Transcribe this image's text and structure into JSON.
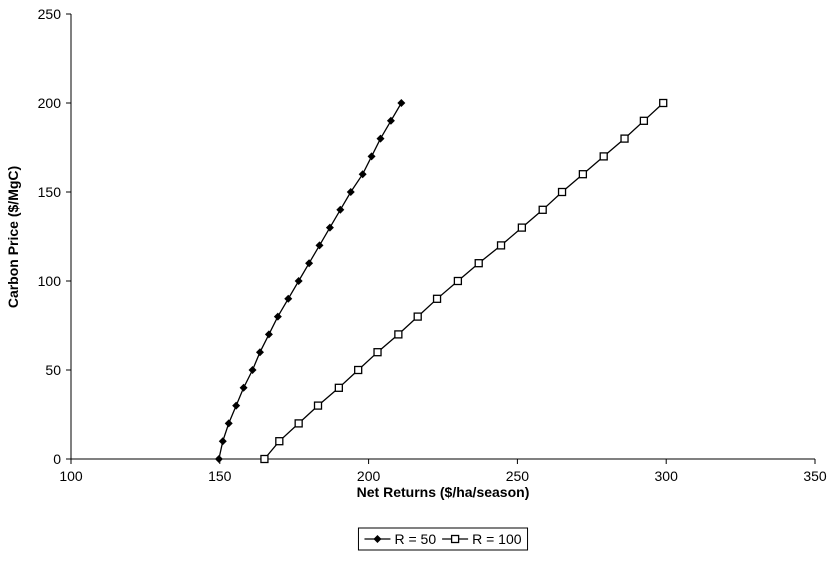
{
  "chart_data": {
    "type": "line",
    "x_label": "Net Returns ($/ha/season)",
    "y_label": "Carbon Price ($/MgC)",
    "xlim": [
      100,
      350
    ],
    "xticks": [
      100,
      150,
      200,
      250,
      300,
      350
    ],
    "ylim": [
      0,
      250
    ],
    "yticks": [
      0,
      50,
      100,
      150,
      200,
      250
    ],
    "grid": false,
    "legend": "bottom",
    "series": [
      {
        "name": "R = 50",
        "color": "#000000",
        "marker": "diamond",
        "x": [
          149.7,
          151,
          153,
          155.5,
          158,
          161,
          163.5,
          166.5,
          169.5,
          173,
          176.5,
          180,
          183.5,
          187,
          190.5,
          194,
          198,
          201,
          204,
          207.5,
          211
        ],
        "values": [
          0,
          10,
          20,
          30,
          40,
          50,
          60,
          70,
          80,
          90,
          100,
          110,
          120,
          130,
          140,
          150,
          160,
          170,
          180,
          190,
          200
        ]
      },
      {
        "name": "R = 100",
        "color": "#000000",
        "marker": "square",
        "x": [
          165,
          170,
          176.5,
          183,
          190,
          196.5,
          203,
          210,
          216.5,
          223,
          230,
          237,
          244.5,
          251.5,
          258.5,
          265,
          272,
          279,
          286,
          292.5,
          299
        ],
        "values": [
          0,
          10,
          20,
          30,
          40,
          50,
          60,
          70,
          80,
          90,
          100,
          110,
          120,
          130,
          140,
          150,
          160,
          170,
          180,
          190,
          200
        ]
      }
    ]
  }
}
